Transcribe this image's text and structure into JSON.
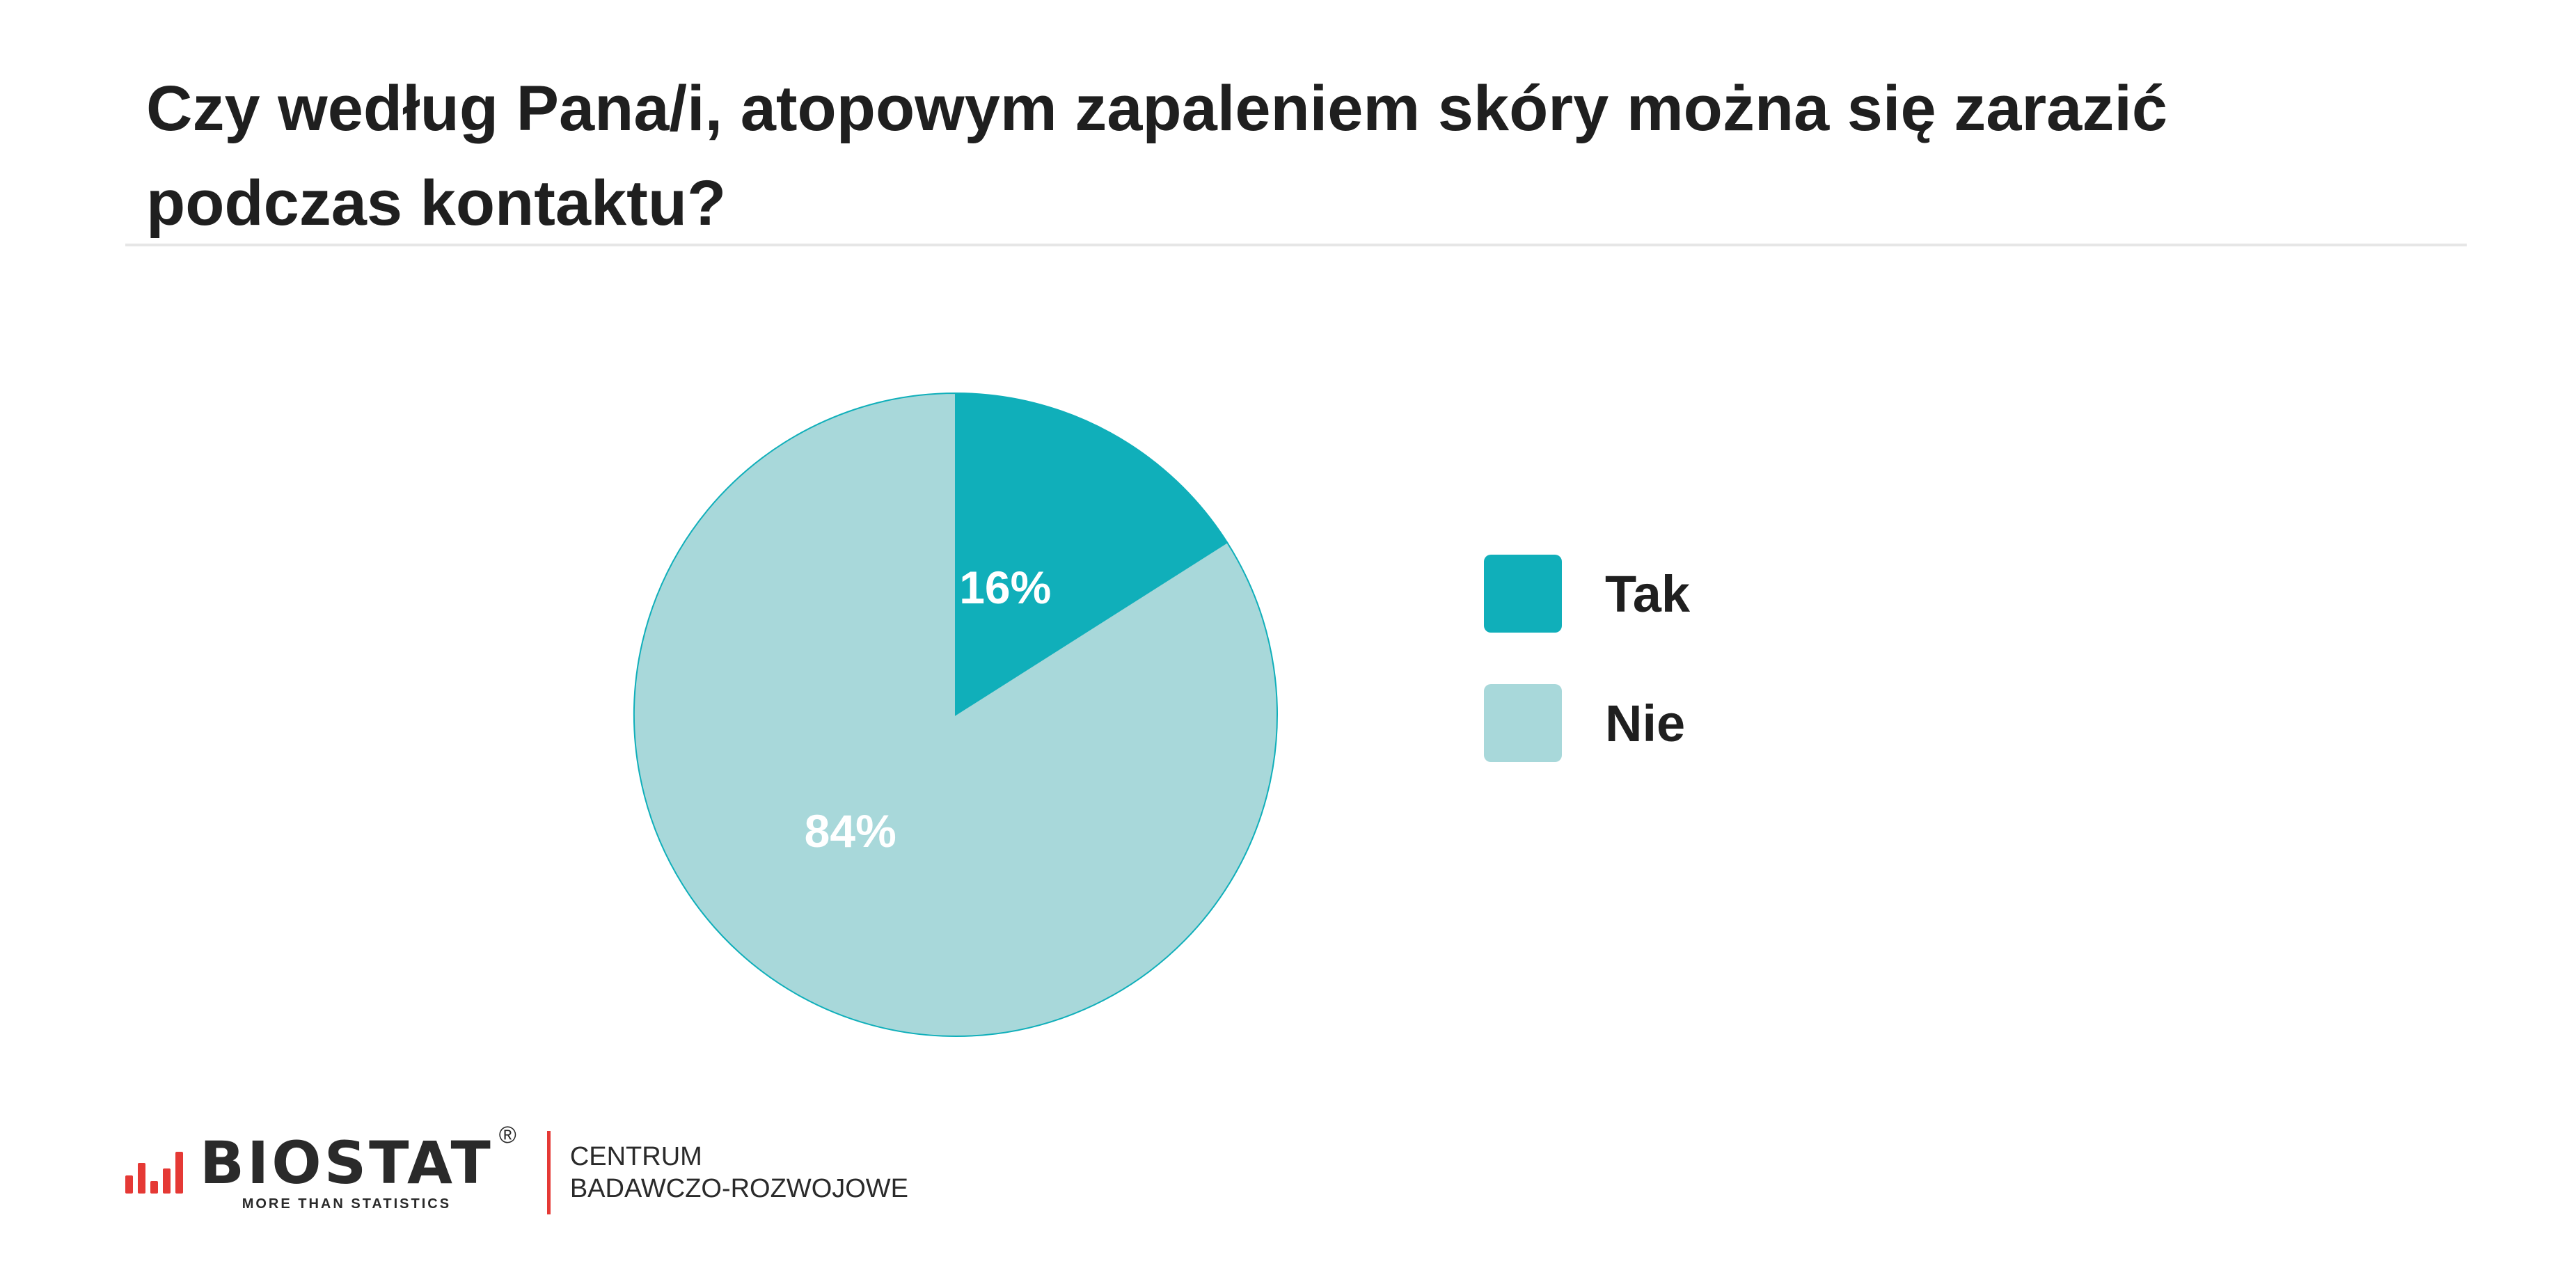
{
  "page": {
    "title": "Czy według Pana/i, atopowym zapaleniem skóry można się zarazić podczas kontaktu?"
  },
  "chart_data": {
    "type": "pie",
    "categories": [
      "Tak",
      "Nie"
    ],
    "values": [
      16,
      84
    ],
    "value_labels": [
      "16%",
      "84%"
    ],
    "colors": [
      "#10afba",
      "#a8d8da"
    ],
    "legend_position": "right"
  },
  "footer": {
    "brand": "BIOSTAT",
    "registered_mark": "®",
    "tagline": "MORE THAN STATISTICS",
    "center_line1": "CENTRUM",
    "center_line2": "BADAWCZO-ROZWOJOWE",
    "accent_color": "#e53935"
  }
}
